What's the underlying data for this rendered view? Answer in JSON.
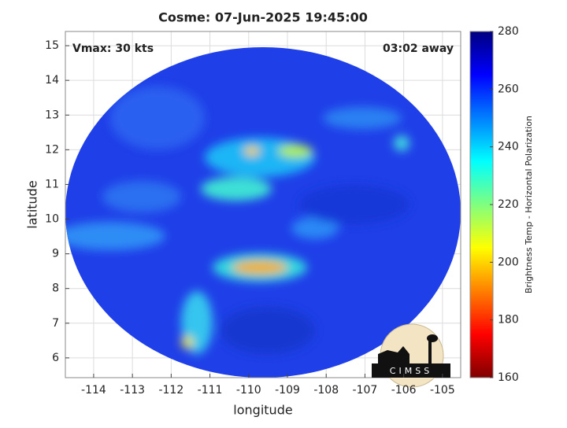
{
  "chart_data": {
    "type": "image",
    "title": "Cosme: 07-Jun-2025 19:45:00",
    "xlabel": "longitude",
    "ylabel": "latitude",
    "annotations": [
      "Vmax: 30 kts",
      "03:02 away"
    ],
    "xlim": [
      -114.73,
      -104.53
    ],
    "xticks": [
      -114,
      -113,
      -112,
      -111,
      -110,
      -109,
      -108,
      -107,
      -106,
      -105
    ],
    "ylim": [
      5.43,
      15.41
    ],
    "yticks": [
      6,
      7,
      8,
      9,
      10,
      11,
      12,
      13,
      14,
      15
    ],
    "grid": true,
    "colormap": "jet",
    "colorbar": {
      "label": "Brightness Temp - Horizontal Polarization",
      "lim": [
        160,
        280
      ],
      "ticks": [
        160,
        180,
        200,
        220,
        240,
        260,
        280
      ]
    },
    "logo": "CIMSS"
  }
}
